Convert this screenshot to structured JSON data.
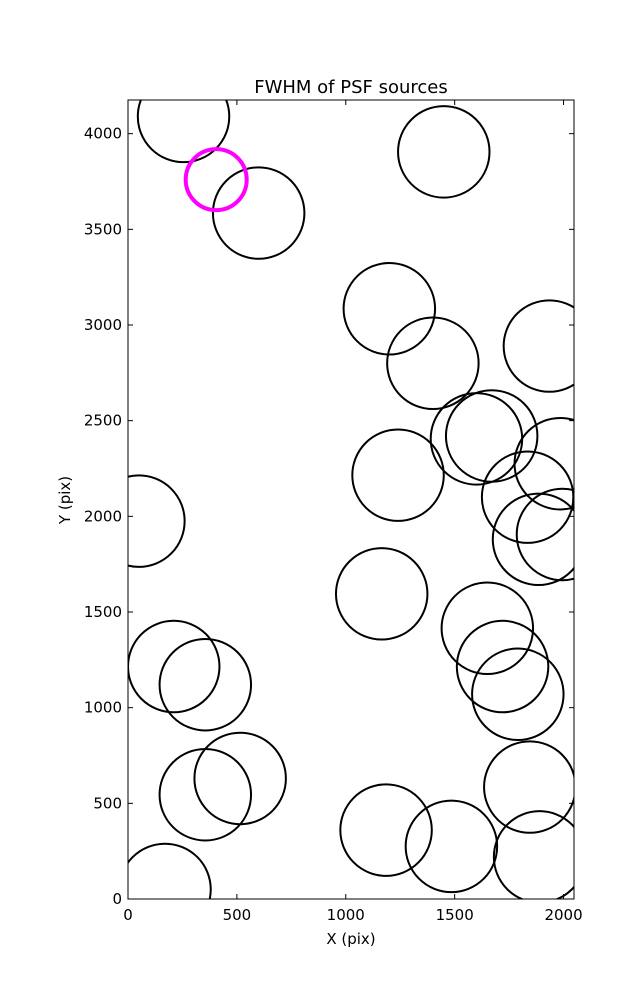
{
  "chart_data": {
    "type": "scatter",
    "title": "FWHM of PSF sources",
    "xlabel": "X (pix)",
    "ylabel": "Y (pix)",
    "xlim": [
      0,
      2048
    ],
    "ylim": [
      0,
      4176
    ],
    "xticks": [
      0,
      500,
      1000,
      1500,
      2000
    ],
    "yticks": [
      0,
      500,
      1000,
      1500,
      2000,
      2500,
      3000,
      3500,
      4000
    ],
    "grid": false,
    "colors": {
      "default": "#000000",
      "highlight": "#ff00ff"
    },
    "sources": [
      {
        "x": 255,
        "y": 4090,
        "r": 210
      },
      {
        "x": 600,
        "y": 3585,
        "r": 210
      },
      {
        "x": 1450,
        "y": 3905,
        "r": 210
      },
      {
        "x": 1200,
        "y": 3085,
        "r": 210
      },
      {
        "x": 1400,
        "y": 2800,
        "r": 210
      },
      {
        "x": 1935,
        "y": 2890,
        "r": 210
      },
      {
        "x": 1600,
        "y": 2405,
        "r": 210
      },
      {
        "x": 1670,
        "y": 2420,
        "r": 210
      },
      {
        "x": 1985,
        "y": 2275,
        "r": 210
      },
      {
        "x": 1240,
        "y": 2215,
        "r": 210
      },
      {
        "x": 1835,
        "y": 2100,
        "r": 210
      },
      {
        "x": 1885,
        "y": 1880,
        "r": 210
      },
      {
        "x": 1995,
        "y": 1905,
        "r": 210
      },
      {
        "x": 50,
        "y": 1975,
        "r": 210
      },
      {
        "x": 1165,
        "y": 1595,
        "r": 210
      },
      {
        "x": 1650,
        "y": 1415,
        "r": 210
      },
      {
        "x": 1720,
        "y": 1215,
        "r": 210
      },
      {
        "x": 1790,
        "y": 1070,
        "r": 210
      },
      {
        "x": 210,
        "y": 1215,
        "r": 210
      },
      {
        "x": 355,
        "y": 1120,
        "r": 210
      },
      {
        "x": 515,
        "y": 630,
        "r": 210
      },
      {
        "x": 355,
        "y": 545,
        "r": 210
      },
      {
        "x": 1845,
        "y": 585,
        "r": 210
      },
      {
        "x": 1185,
        "y": 360,
        "r": 210
      },
      {
        "x": 1485,
        "y": 275,
        "r": 210
      },
      {
        "x": 1890,
        "y": 220,
        "r": 210
      },
      {
        "x": 170,
        "y": 50,
        "r": 210
      },
      {
        "x": 405,
        "y": 3760,
        "r": 140,
        "highlight": true
      }
    ]
  }
}
